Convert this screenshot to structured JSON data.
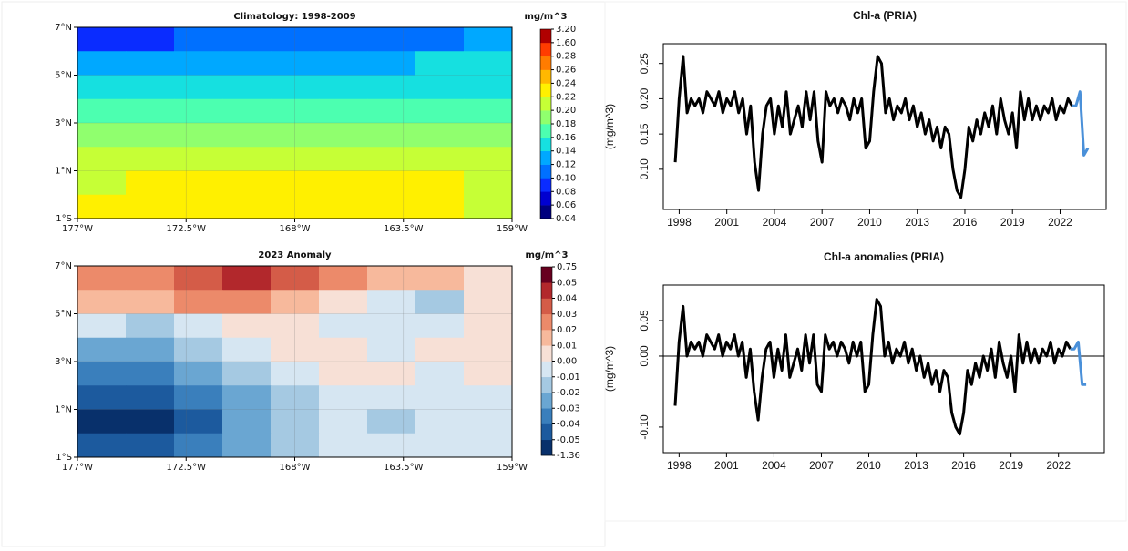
{
  "chart_data": [
    {
      "type": "heatmap",
      "title": "Climatology: 1998-2009",
      "colorbar_label": "mg/m^3",
      "xlim": [
        -177,
        -159
      ],
      "xticks": [
        {
          "value": -177,
          "label": "177°W"
        },
        {
          "value": -172.5,
          "label": "172.5°W"
        },
        {
          "value": -168,
          "label": "168°W"
        },
        {
          "value": -163.5,
          "label": "163.5°W"
        },
        {
          "value": -159,
          "label": "159°W"
        }
      ],
      "ylim": [
        -1,
        7
      ],
      "yticks": [
        {
          "value": -1,
          "label": "1°S"
        },
        {
          "value": 1,
          "label": "1°N"
        },
        {
          "value": 3,
          "label": "3°N"
        },
        {
          "value": 5,
          "label": "5°N"
        },
        {
          "value": 7,
          "label": "7°N"
        }
      ],
      "grid": true,
      "values": [
        [
          0.09,
          0.09,
          0.1,
          0.1,
          0.1,
          0.1,
          0.11,
          0.11,
          0.12
        ],
        [
          0.13,
          0.12,
          0.12,
          0.12,
          0.13,
          0.13,
          0.13,
          0.14,
          0.14
        ],
        [
          0.15,
          0.15,
          0.14,
          0.14,
          0.15,
          0.15,
          0.15,
          0.15,
          0.15
        ],
        [
          0.17,
          0.17,
          0.17,
          0.16,
          0.17,
          0.17,
          0.17,
          0.17,
          0.17
        ],
        [
          0.19,
          0.19,
          0.19,
          0.19,
          0.19,
          0.19,
          0.19,
          0.19,
          0.19
        ],
        [
          0.2,
          0.2,
          0.2,
          0.2,
          0.21,
          0.21,
          0.21,
          0.21,
          0.21
        ],
        [
          0.21,
          0.22,
          0.22,
          0.23,
          0.23,
          0.23,
          0.23,
          0.22,
          0.21
        ],
        [
          0.22,
          0.23,
          0.23,
          0.23,
          0.23,
          0.23,
          0.23,
          0.23,
          0.21
        ]
      ],
      "levels": [
        0.04,
        0.06,
        0.08,
        {
          "value": 0.1,
          "label": "0.10"
        },
        0.12,
        0.14,
        0.16,
        0.18,
        {
          "value": 0.2,
          "label": "0.20"
        },
        0.22,
        0.24,
        0.26,
        0.28,
        {
          "value": 1.6,
          "label": "1.60"
        },
        {
          "value": 3.2,
          "label": "3.20"
        }
      ],
      "colors": [
        "#00007f",
        "#0000d0",
        "#0a2cff",
        "#0070ff",
        "#00a8ff",
        "#16e0e0",
        "#4cffb0",
        "#90ff6e",
        "#c6ff36",
        "#fff000",
        "#ffb800",
        "#ff7c00",
        "#ff3c00",
        "#b00000"
      ]
    },
    {
      "type": "line",
      "title": "Chl-a (PRIA)",
      "ylabel": "(mg/m^3)",
      "xlim": [
        1997,
        2024.9
      ],
      "xticks": [
        1998,
        2001,
        2004,
        2007,
        2010,
        2013,
        2016,
        2019,
        2022
      ],
      "ylim": [
        0.043,
        0.278
      ],
      "yticks": [
        {
          "value": 0.1,
          "label": "0.10"
        },
        0.15,
        {
          "value": 0.2,
          "label": "0.20"
        },
        0.25
      ],
      "series": [
        {
          "color": "#000000",
          "x": [
            1997.75,
            1998,
            1998.25,
            1998.5,
            1998.75,
            1999,
            1999.25,
            1999.5,
            1999.75,
            2000,
            2000.25,
            2000.5,
            2000.75,
            2001,
            2001.25,
            2001.5,
            2001.75,
            2002,
            2002.25,
            2002.5,
            2002.75,
            2003,
            2003.25,
            2003.5,
            2003.75,
            2004,
            2004.25,
            2004.5,
            2004.75,
            2005,
            2005.25,
            2005.5,
            2005.75,
            2006,
            2006.25,
            2006.5,
            2006.75,
            2007,
            2007.25,
            2007.5,
            2007.75,
            2008,
            2008.25,
            2008.5,
            2008.75,
            2009,
            2009.25,
            2009.5,
            2009.75,
            2010,
            2010.25,
            2010.5,
            2010.75,
            2011,
            2011.25,
            2011.5,
            2011.75,
            2012,
            2012.25,
            2012.5,
            2012.75,
            2013,
            2013.25,
            2013.5,
            2013.75,
            2014,
            2014.25,
            2014.5,
            2014.75,
            2015,
            2015.25,
            2015.5,
            2015.75,
            2016,
            2016.25,
            2016.5,
            2016.75,
            2017,
            2017.25,
            2017.5,
            2017.75,
            2018,
            2018.25,
            2018.5,
            2018.75,
            2019,
            2019.25,
            2019.5,
            2019.75,
            2020,
            2020.25,
            2020.5,
            2020.75,
            2021,
            2021.25,
            2021.5,
            2021.75,
            2022,
            2022.25,
            2022.5,
            2022.75
          ],
          "values": [
            0.11,
            0.2,
            0.26,
            0.18,
            0.2,
            0.19,
            0.2,
            0.18,
            0.21,
            0.2,
            0.19,
            0.21,
            0.18,
            0.2,
            0.19,
            0.21,
            0.18,
            0.2,
            0.15,
            0.19,
            0.11,
            0.07,
            0.15,
            0.19,
            0.2,
            0.15,
            0.19,
            0.16,
            0.21,
            0.15,
            0.17,
            0.19,
            0.16,
            0.21,
            0.17,
            0.21,
            0.14,
            0.11,
            0.21,
            0.19,
            0.2,
            0.18,
            0.2,
            0.19,
            0.17,
            0.2,
            0.18,
            0.2,
            0.13,
            0.14,
            0.21,
            0.26,
            0.25,
            0.18,
            0.2,
            0.17,
            0.19,
            0.18,
            0.2,
            0.17,
            0.19,
            0.16,
            0.18,
            0.15,
            0.17,
            0.14,
            0.16,
            0.13,
            0.16,
            0.15,
            0.1,
            0.07,
            0.06,
            0.1,
            0.16,
            0.14,
            0.17,
            0.15,
            0.18,
            0.16,
            0.19,
            0.15,
            0.2,
            0.17,
            0.15,
            0.18,
            0.13,
            0.21,
            0.17,
            0.2,
            0.17,
            0.19,
            0.17,
            0.19,
            0.18,
            0.2,
            0.17,
            0.19,
            0.18,
            0.2,
            0.19
          ]
        },
        {
          "color": "#4a90d9",
          "x": [
            2022.75,
            2023,
            2023.25,
            2023.5,
            2023.75
          ],
          "values": [
            0.19,
            0.19,
            0.21,
            0.12,
            0.13
          ]
        }
      ]
    },
    {
      "type": "heatmap",
      "title": "2023 Anomaly",
      "colorbar_label": "mg/m^3",
      "xlim": [
        -177,
        -159
      ],
      "xticks": [
        {
          "value": -177,
          "label": "177°W"
        },
        {
          "value": -172.5,
          "label": "172.5°W"
        },
        {
          "value": -168,
          "label": "168°W"
        },
        {
          "value": -163.5,
          "label": "163.5°W"
        },
        {
          "value": -159,
          "label": "159°W"
        }
      ],
      "ylim": [
        -1,
        7
      ],
      "yticks": [
        {
          "value": -1,
          "label": "1°S"
        },
        {
          "value": 1,
          "label": "1°N"
        },
        {
          "value": 3,
          "label": "3°N"
        },
        {
          "value": 5,
          "label": "5°N"
        },
        {
          "value": 7,
          "label": "7°N"
        }
      ],
      "grid": true,
      "values": [
        [
          0.02,
          0.02,
          0.03,
          0.04,
          0.03,
          0.02,
          0.01,
          0.01,
          0
        ],
        [
          0.01,
          0.01,
          0.02,
          0.02,
          0.01,
          0,
          -0.01,
          -0.02,
          0
        ],
        [
          -0.01,
          -0.02,
          -0.01,
          0,
          0,
          -0.01,
          -0.01,
          -0.01,
          0
        ],
        [
          -0.03,
          -0.03,
          -0.02,
          -0.01,
          0,
          0,
          -0.01,
          0,
          0
        ],
        [
          -0.04,
          -0.04,
          -0.03,
          -0.02,
          -0.01,
          0,
          0,
          -0.01,
          0
        ],
        [
          -0.05,
          -0.05,
          -0.04,
          -0.03,
          -0.02,
          -0.01,
          -0.01,
          -0.01,
          -0.01
        ],
        [
          -0.06,
          -0.06,
          -0.05,
          -0.03,
          -0.02,
          -0.01,
          -0.02,
          -0.01,
          -0.01
        ],
        [
          -0.05,
          -0.05,
          -0.04,
          -0.03,
          -0.02,
          -0.01,
          -0.01,
          -0.01,
          -0.01
        ]
      ],
      "levels": [
        -1.36,
        -0.05,
        -0.04,
        -0.03,
        -0.02,
        -0.01,
        {
          "value": 0,
          "label": "0.00"
        },
        0.01,
        0.02,
        0.03,
        0.04,
        0.05,
        0.75
      ],
      "colors": [
        "#08306b",
        "#1c5a9e",
        "#3a7fbc",
        "#6aa6d2",
        "#a5c9e2",
        "#d6e6f2",
        "#f7e0d6",
        "#f7b99c",
        "#ec8a6a",
        "#d45c48",
        "#b2282c",
        "#67001f"
      ]
    },
    {
      "type": "line",
      "title": "Chl-a anomalies (PRIA)",
      "ylabel": "(mg/m^3)",
      "xlim": [
        1997,
        2024.9
      ],
      "xticks": [
        1998,
        2001,
        2004,
        2007,
        2010,
        2013,
        2016,
        2019,
        2022
      ],
      "ylim": [
        -0.136,
        0.1
      ],
      "yticks": [
        {
          "value": -0.1,
          "label": "-0.10"
        },
        {
          "value": 0,
          "label": "0.00"
        },
        0.05
      ],
      "hline": 0,
      "series": [
        {
          "color": "#000000",
          "x": [
            1997.75,
            1998,
            1998.25,
            1998.5,
            1998.75,
            1999,
            1999.25,
            1999.5,
            1999.75,
            2000,
            2000.25,
            2000.5,
            2000.75,
            2001,
            2001.25,
            2001.5,
            2001.75,
            2002,
            2002.25,
            2002.5,
            2002.75,
            2003,
            2003.25,
            2003.5,
            2003.75,
            2004,
            2004.25,
            2004.5,
            2004.75,
            2005,
            2005.25,
            2005.5,
            2005.75,
            2006,
            2006.25,
            2006.5,
            2006.75,
            2007,
            2007.25,
            2007.5,
            2007.75,
            2008,
            2008.25,
            2008.5,
            2008.75,
            2009,
            2009.25,
            2009.5,
            2009.75,
            2010,
            2010.25,
            2010.5,
            2010.75,
            2011,
            2011.25,
            2011.5,
            2011.75,
            2012,
            2012.25,
            2012.5,
            2012.75,
            2013,
            2013.25,
            2013.5,
            2013.75,
            2014,
            2014.25,
            2014.5,
            2014.75,
            2015,
            2015.25,
            2015.5,
            2015.75,
            2016,
            2016.25,
            2016.5,
            2016.75,
            2017,
            2017.25,
            2017.5,
            2017.75,
            2018,
            2018.25,
            2018.5,
            2018.75,
            2019,
            2019.25,
            2019.5,
            2019.75,
            2020,
            2020.25,
            2020.5,
            2020.75,
            2021,
            2021.25,
            2021.5,
            2021.75,
            2022,
            2022.25,
            2022.5,
            2022.75
          ],
          "values": [
            -0.07,
            0.02,
            0.07,
            0,
            0.02,
            0.01,
            0.02,
            0,
            0.03,
            0.02,
            0.01,
            0.03,
            0,
            0.02,
            0.01,
            0.03,
            0,
            0.02,
            -0.03,
            0.01,
            -0.05,
            -0.09,
            -0.03,
            0.01,
            0.02,
            -0.03,
            0.01,
            -0.02,
            0.03,
            -0.03,
            -0.01,
            0.01,
            -0.02,
            0.03,
            -0.01,
            0.03,
            -0.04,
            -0.05,
            0.03,
            0.01,
            0.02,
            0,
            0.02,
            0.01,
            -0.01,
            0.02,
            0,
            0.02,
            -0.05,
            -0.04,
            0.03,
            0.08,
            0.07,
            0,
            0.02,
            -0.01,
            0.01,
            0,
            0.02,
            -0.01,
            0.01,
            -0.02,
            0,
            -0.03,
            -0.01,
            -0.04,
            -0.02,
            -0.05,
            -0.02,
            -0.03,
            -0.08,
            -0.1,
            -0.11,
            -0.08,
            -0.02,
            -0.04,
            -0.01,
            -0.03,
            0,
            -0.02,
            0.01,
            -0.03,
            0.02,
            -0.01,
            -0.03,
            0,
            -0.05,
            0.03,
            -0.01,
            0.02,
            -0.01,
            0.01,
            -0.01,
            0.01,
            0,
            0.02,
            -0.01,
            0.01,
            0,
            0.02,
            0.01
          ]
        },
        {
          "color": "#4a90d9",
          "x": [
            2022.75,
            2023,
            2023.25,
            2023.5,
            2023.75
          ],
          "values": [
            0.01,
            0.01,
            0.02,
            -0.04,
            -0.04
          ]
        }
      ]
    }
  ]
}
